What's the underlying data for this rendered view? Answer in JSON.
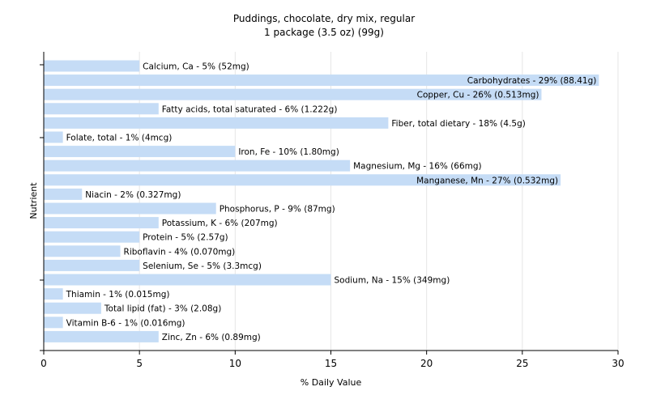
{
  "chart_data": {
    "type": "bar",
    "orientation": "horizontal",
    "title": "Puddings, chocolate, dry mix, regular",
    "subtitle": "1 package (3.5 oz) (99g)",
    "xlabel": "% Daily Value",
    "ylabel": "Nutrient",
    "xlim": [
      0,
      30
    ],
    "xticks": [
      "0",
      "5",
      "10",
      "15",
      "20",
      "25",
      "30"
    ],
    "grid": true,
    "bar_color": "#c5dcf6",
    "bars": [
      {
        "value": 5,
        "label": "Calcium, Ca - 5% (52mg)"
      },
      {
        "value": 29,
        "label": "Carbohydrates - 29% (88.41g)"
      },
      {
        "value": 26,
        "label": "Copper, Cu - 26% (0.513mg)"
      },
      {
        "value": 6,
        "label": "Fatty acids, total saturated - 6% (1.222g)"
      },
      {
        "value": 18,
        "label": "Fiber, total dietary - 18% (4.5g)"
      },
      {
        "value": 1,
        "label": "Folate, total - 1% (4mcg)"
      },
      {
        "value": 10,
        "label": "Iron, Fe - 10% (1.80mg)"
      },
      {
        "value": 16,
        "label": "Magnesium, Mg - 16% (66mg)"
      },
      {
        "value": 27,
        "label": "Manganese, Mn - 27% (0.532mg)"
      },
      {
        "value": 2,
        "label": "Niacin - 2% (0.327mg)"
      },
      {
        "value": 9,
        "label": "Phosphorus, P - 9% (87mg)"
      },
      {
        "value": 6,
        "label": "Potassium, K - 6% (207mg)"
      },
      {
        "value": 5,
        "label": "Protein - 5% (2.57g)"
      },
      {
        "value": 4,
        "label": "Riboflavin - 4% (0.070mg)"
      },
      {
        "value": 5,
        "label": "Selenium, Se - 5% (3.3mcg)"
      },
      {
        "value": 15,
        "label": "Sodium, Na - 15% (349mg)"
      },
      {
        "value": 1,
        "label": "Thiamin - 1% (0.015mg)"
      },
      {
        "value": 3,
        "label": "Total lipid (fat) - 3% (2.08g)"
      },
      {
        "value": 1,
        "label": "Vitamin B-6 - 1% (0.016mg)"
      },
      {
        "value": 6,
        "label": "Zinc, Zn - 6% (0.89mg)"
      }
    ]
  }
}
